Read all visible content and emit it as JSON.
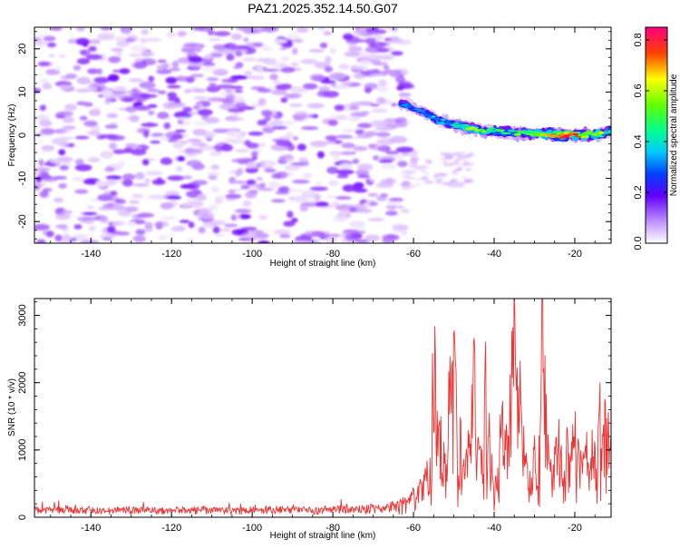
{
  "title": "PAZ1.2025.352.14.50.G07",
  "colors": {
    "snr_line": "#ee3333",
    "frame": "#000000",
    "background": "#ffffff"
  },
  "chart_data": [
    {
      "type": "heatmap",
      "name": "spectrogram",
      "xlabel": "Height of straight line (km)",
      "ylabel": "Frequency (Hz)",
      "xlim": [
        -154,
        -11
      ],
      "ylim": [
        -25,
        25
      ],
      "xticks": [
        -140,
        -120,
        -100,
        -80,
        -60,
        -40,
        -20
      ],
      "yticks": [
        -20,
        -10,
        0,
        10,
        20
      ],
      "colorbar": {
        "label": "Normalized spectral amplitude",
        "range": [
          0.0,
          0.85
        ],
        "ticks": [
          "0.0",
          "0.2",
          "0.4",
          "0.6",
          "0.8"
        ],
        "tick_values": [
          0.0,
          0.2,
          0.4,
          0.6,
          0.8
        ]
      },
      "noise_region": {
        "x": [
          -154,
          -63
        ],
        "y": [
          -25,
          25
        ],
        "level": 0.08
      },
      "signal_ridge": [
        {
          "x": -63,
          "y": 7.5,
          "amp": 0.3
        },
        {
          "x": -58,
          "y": 5.5,
          "amp": 0.32
        },
        {
          "x": -54,
          "y": 3.5,
          "amp": 0.34
        },
        {
          "x": -50,
          "y": 2.5,
          "amp": 0.38
        },
        {
          "x": -46,
          "y": 1.5,
          "amp": 0.55
        },
        {
          "x": -42,
          "y": 1.0,
          "amp": 0.5
        },
        {
          "x": -38,
          "y": 0.8,
          "amp": 0.45
        },
        {
          "x": -34,
          "y": 0.5,
          "amp": 0.48
        },
        {
          "x": -30,
          "y": 0.3,
          "amp": 0.52
        },
        {
          "x": -26,
          "y": 0.2,
          "amp": 0.62
        },
        {
          "x": -22,
          "y": 0.0,
          "amp": 0.85
        },
        {
          "x": -18,
          "y": 0.0,
          "amp": 0.6
        },
        {
          "x": -14,
          "y": 0.2,
          "amp": 0.55
        },
        {
          "x": -11,
          "y": 1.0,
          "amp": 0.4
        }
      ]
    },
    {
      "type": "line",
      "name": "snr",
      "xlabel": "Height of straight line (km)",
      "ylabel": "SNR (10 * v/v)",
      "xlim": [
        -154,
        -11
      ],
      "ylim": [
        0,
        3250
      ],
      "xticks": [
        -140,
        -120,
        -100,
        -80,
        -60,
        -40,
        -20
      ],
      "yticks": [
        0,
        1000,
        2000,
        3000
      ],
      "series": [
        {
          "name": "SNR",
          "x": [
            -154,
            -150,
            -145,
            -140,
            -135,
            -130,
            -125,
            -120,
            -115,
            -110,
            -105,
            -100,
            -95,
            -90,
            -85,
            -80,
            -75,
            -70,
            -66,
            -63,
            -60,
            -58,
            -56,
            -55,
            -54,
            -53,
            -52,
            -51,
            -50,
            -49,
            -48,
            -47,
            -46,
            -45,
            -44,
            -43,
            -42,
            -41,
            -40,
            -39,
            -38,
            -37,
            -36,
            -35,
            -34,
            -33,
            -32,
            -31,
            -30,
            -29,
            -28,
            -27,
            -26,
            -25,
            -24,
            -23,
            -22,
            -21,
            -20,
            -19,
            -18,
            -17,
            -16,
            -15,
            -14,
            -13,
            -12,
            -11
          ],
          "y": [
            130,
            120,
            140,
            120,
            110,
            130,
            120,
            110,
            130,
            120,
            110,
            120,
            130,
            120,
            110,
            140,
            130,
            150,
            170,
            220,
            350,
            500,
            800,
            2450,
            1600,
            1100,
            1000,
            2100,
            2900,
            1500,
            1000,
            800,
            1300,
            2200,
            1000,
            900,
            2350,
            1100,
            300,
            900,
            1500,
            1200,
            1900,
            2600,
            2300,
            1200,
            800,
            600,
            1100,
            900,
            3200,
            1300,
            700,
            900,
            1200,
            700,
            1100,
            900,
            1300,
            900,
            800,
            1200,
            1100,
            900,
            2000,
            1600,
            1400,
            1000
          ]
        }
      ]
    }
  ]
}
